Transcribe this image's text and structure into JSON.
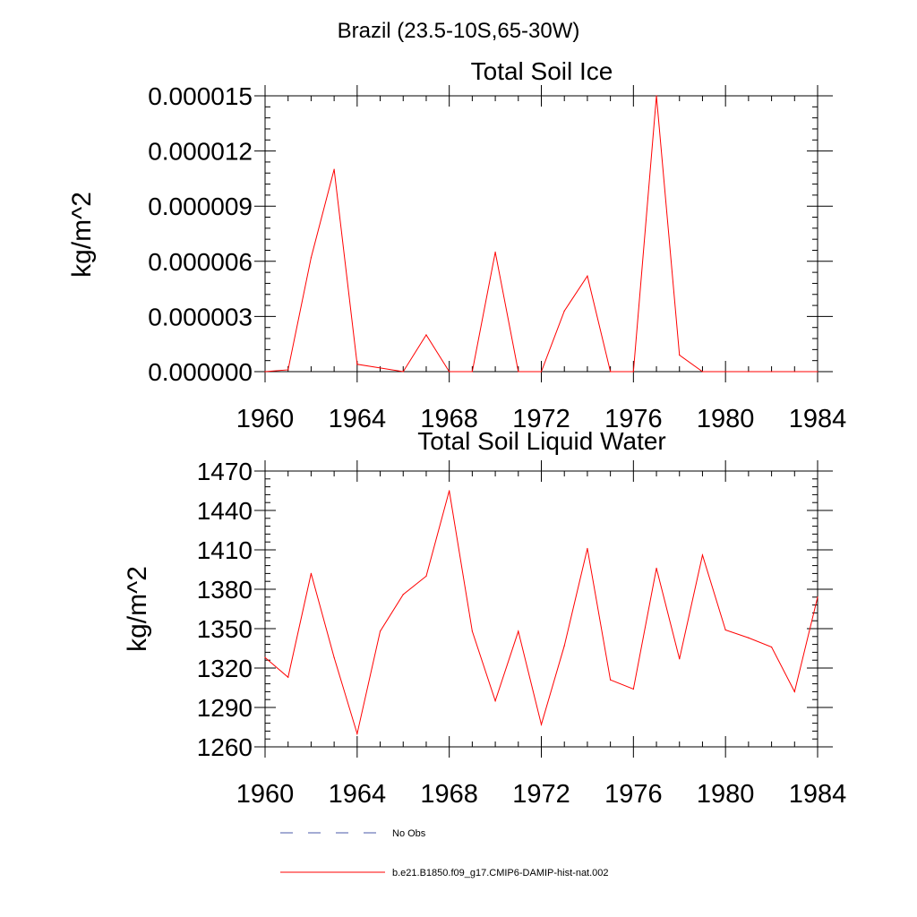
{
  "figure_title": "Brazil (23.5-10S,65-30W)",
  "colors": {
    "series": "#ff0000",
    "no_obs": "#4a5aa8",
    "axis": "#000000"
  },
  "legend": {
    "no_obs_label": "No Obs",
    "model_label": "b.e21.B1850.f09_g17.CMIP6-DAMIP-hist-nat.002"
  },
  "chart_data": [
    {
      "type": "line",
      "title": "Total Soil Ice",
      "ylabel": "kg/m^2",
      "xlabel": "",
      "xlim": [
        1960,
        1984
      ],
      "ylim": [
        0,
        1.5e-05
      ],
      "yticks": [
        "0.000000",
        "0.000003",
        "0.000006",
        "0.000009",
        "0.000012",
        "0.000015"
      ],
      "xticks": [
        "1960",
        "1964",
        "1968",
        "1972",
        "1976",
        "1980",
        "1984"
      ],
      "x": [
        1960,
        1961,
        1962,
        1963,
        1964,
        1965,
        1966,
        1967,
        1968,
        1969,
        1970,
        1971,
        1972,
        1973,
        1974,
        1975,
        1976,
        1977,
        1978,
        1979,
        1980,
        1981,
        1982,
        1983,
        1984
      ],
      "series": [
        {
          "values": [
            0,
            1e-07,
            6.2e-06,
            1.1e-05,
            4e-07,
            2e-07,
            0,
            2e-06,
            0,
            0,
            6.5e-06,
            0,
            0,
            3.3e-06,
            5.2e-06,
            0,
            0,
            1.5e-05,
            9e-07,
            0,
            0,
            0,
            0,
            0,
            0
          ]
        }
      ]
    },
    {
      "type": "line",
      "title": "Total Soil Liquid Water",
      "ylabel": "kg/m^2",
      "xlabel": "",
      "xlim": [
        1960,
        1984
      ],
      "ylim": [
        1260,
        1470
      ],
      "yticks": [
        "1260",
        "1290",
        "1320",
        "1350",
        "1380",
        "1410",
        "1440",
        "1470"
      ],
      "xticks": [
        "1960",
        "1964",
        "1968",
        "1972",
        "1976",
        "1980",
        "1984"
      ],
      "x": [
        1960,
        1961,
        1962,
        1963,
        1964,
        1965,
        1966,
        1967,
        1968,
        1969,
        1970,
        1971,
        1972,
        1973,
        1974,
        1975,
        1976,
        1977,
        1978,
        1979,
        1980,
        1981,
        1982,
        1983,
        1984
      ],
      "series": [
        {
          "values": [
            1328,
            1313,
            1392,
            1328,
            1270,
            1348,
            1376,
            1390,
            1455,
            1348,
            1295,
            1348,
            1277,
            1337,
            1411,
            1311,
            1304,
            1396,
            1327,
            1406,
            1349,
            1343,
            1336,
            1302,
            1374
          ]
        }
      ]
    }
  ]
}
